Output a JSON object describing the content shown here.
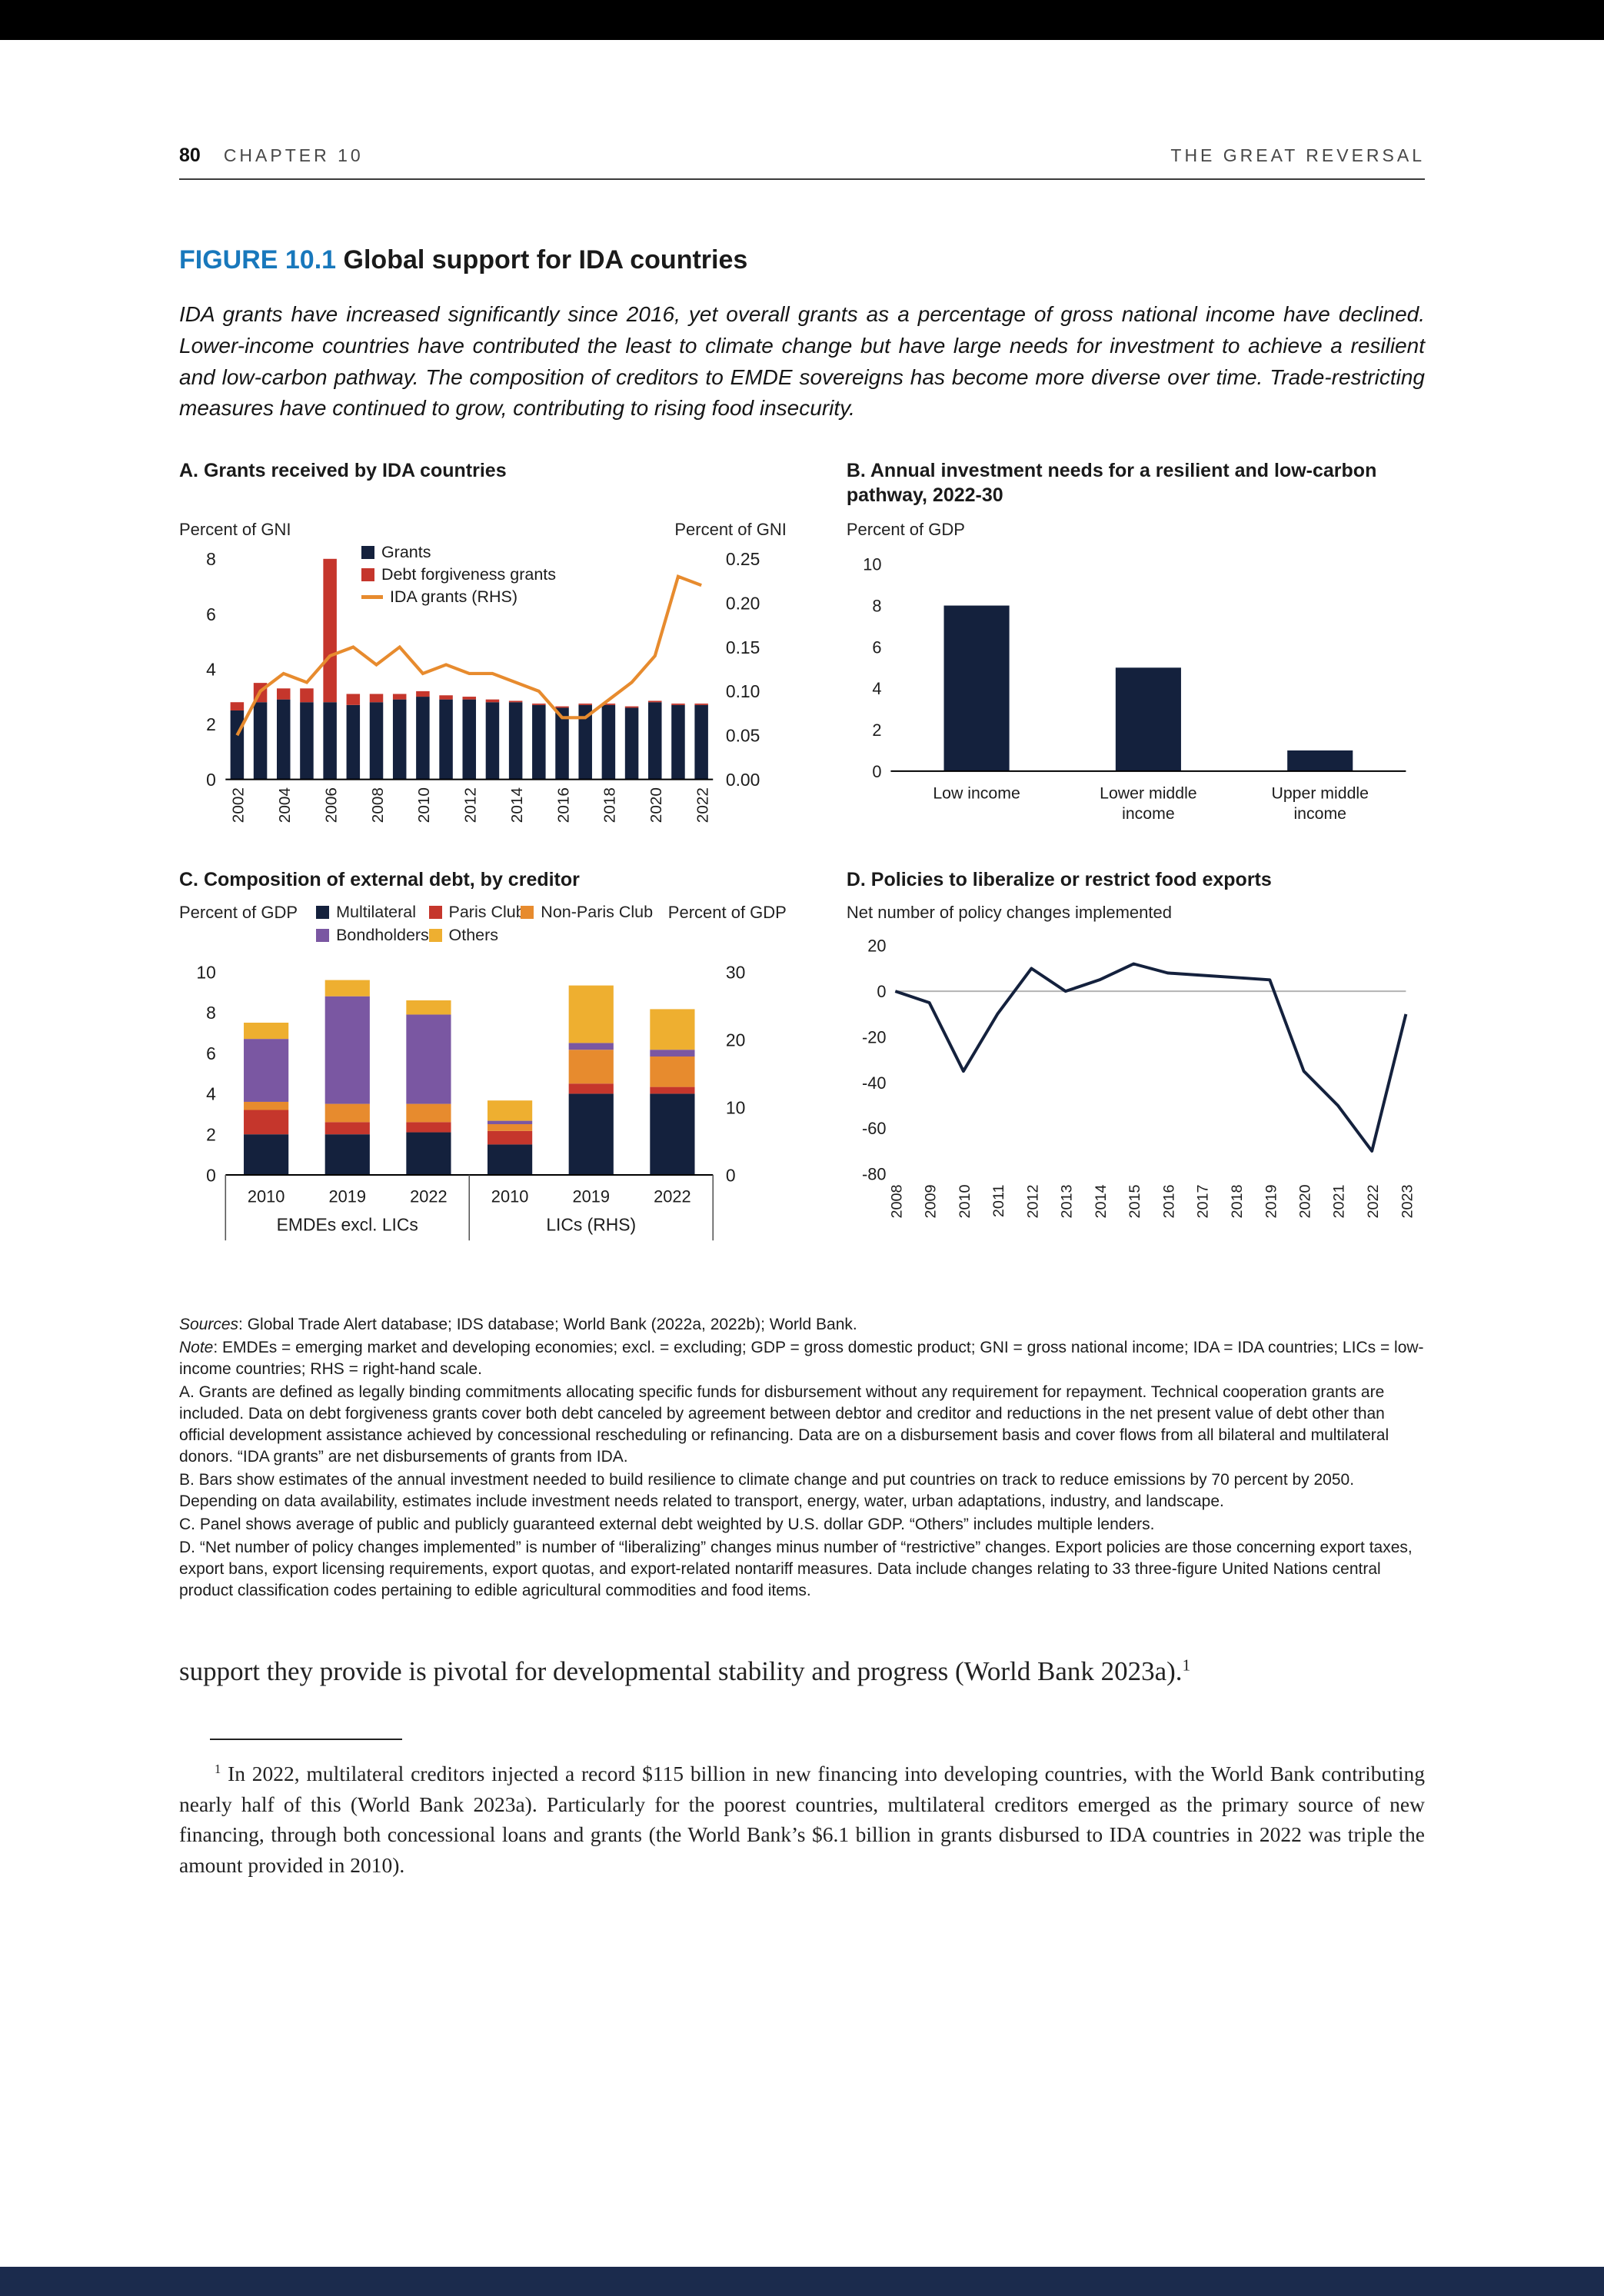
{
  "header": {
    "page_number": "80",
    "chapter": "CHAPTER 10",
    "running_title": "THE GREAT REVERSAL"
  },
  "figure": {
    "label": "FIGURE 10.1",
    "title": "Global support for IDA countries",
    "intro": "IDA grants have increased significantly since 2016, yet overall grants as a percentage of gross national income have declined. Lower-income countries have contributed the least to climate change but have large needs for investment to achieve a resilient and low-carbon pathway. The composition of creditors to EMDE sovereigns has become more diverse over time. Trade-restricting measures have continued to grow, contributing to rising food insecurity."
  },
  "panels": {
    "a": {
      "heading": "A. Grants received by IDA countries",
      "left_axis_label": "Percent of GNI",
      "right_axis_label": "Percent of GNI"
    },
    "b": {
      "heading": "B. Annual investment needs for a resilient and low-carbon pathway, 2022-30",
      "axis_label": "Percent of GDP"
    },
    "c": {
      "heading": "C. Composition of external debt, by creditor",
      "left_axis_label": "Percent of GDP",
      "right_axis_label": "Percent of GDP"
    },
    "d": {
      "heading": "D. Policies to liberalize or restrict food exports",
      "subtitle": "Net number of policy changes implemented"
    }
  },
  "chart_data": [
    {
      "id": "a",
      "type": "bar",
      "title": "A. Grants received by IDA countries",
      "left_axis_label": "Percent of GNI",
      "right_axis_label": "Percent of GNI",
      "ylim_left": [
        0,
        8
      ],
      "ylim_right": [
        0,
        0.25
      ],
      "left_ticks": [
        0,
        2,
        4,
        6,
        8
      ],
      "right_ticks": [
        0,
        0.05,
        0.1,
        0.15,
        0.2,
        0.25
      ],
      "years": [
        2002,
        2003,
        2004,
        2005,
        2006,
        2007,
        2008,
        2009,
        2010,
        2011,
        2012,
        2013,
        2014,
        2015,
        2016,
        2017,
        2018,
        2019,
        2020,
        2021,
        2022
      ],
      "series": [
        {
          "name": "Grants",
          "type": "bar",
          "axis": "left",
          "color": "navy",
          "values": [
            2.5,
            2.8,
            2.9,
            2.8,
            2.8,
            2.7,
            2.8,
            2.9,
            3.0,
            2.9,
            2.9,
            2.8,
            2.8,
            2.7,
            2.6,
            2.7,
            2.7,
            2.6,
            2.8,
            2.7,
            2.7
          ]
        },
        {
          "name": "Debt forgiveness grants",
          "type": "bar",
          "axis": "left",
          "color": "red",
          "values": [
            0.3,
            0.7,
            0.4,
            0.5,
            5.2,
            0.4,
            0.3,
            0.2,
            0.2,
            0.15,
            0.1,
            0.1,
            0.05,
            0.05,
            0.05,
            0.05,
            0.05,
            0.05,
            0.05,
            0.05,
            0.05
          ]
        },
        {
          "name": "IDA grants (RHS)",
          "type": "line",
          "axis": "right",
          "color": "orange",
          "values": [
            0.05,
            0.1,
            0.12,
            0.11,
            0.14,
            0.15,
            0.13,
            0.15,
            0.12,
            0.13,
            0.12,
            0.12,
            0.11,
            0.1,
            0.07,
            0.07,
            0.09,
            0.11,
            0.14,
            0.23,
            0.22
          ]
        }
      ]
    },
    {
      "id": "b",
      "type": "bar",
      "title": "B. Annual investment needs for a resilient and low-carbon pathway, 2022-30",
      "ylabel": "Percent of GDP",
      "ylim": [
        0,
        10
      ],
      "yticks": [
        0,
        2,
        4,
        6,
        8,
        10
      ],
      "categories": [
        "Low income",
        "Lower middle\nincome",
        "Upper middle\nincome"
      ],
      "values": [
        8,
        5,
        1
      ],
      "bar_color": "navy"
    },
    {
      "id": "c",
      "type": "bar",
      "title": "C. Composition of external debt, by creditor",
      "left_axis_label": "Percent of GDP",
      "right_axis_label": "Percent of GDP",
      "ylim_left": [
        0,
        10
      ],
      "ylim_right": [
        0,
        30
      ],
      "left_ticks": [
        0,
        2,
        4,
        6,
        8,
        10
      ],
      "right_ticks": [
        0,
        10,
        20,
        30
      ],
      "series": [
        {
          "name": "Multilateral",
          "color": "navy"
        },
        {
          "name": "Paris Club",
          "color": "red"
        },
        {
          "name": "Non-Paris Club",
          "color": "orange"
        },
        {
          "name": "Bondholders",
          "color": "purple"
        },
        {
          "name": "Others",
          "color": "yellow"
        }
      ],
      "group_labels": [
        "EMDEs excl. LICs",
        "LICs (RHS)"
      ],
      "scale_note": "LICs bars read on the right-hand scale (0-30)",
      "stacks": [
        {
          "group": "EMDEs excl. LICs",
          "year": "2010",
          "axis": "left",
          "values": [
            2.0,
            1.2,
            0.4,
            3.1,
            0.8
          ]
        },
        {
          "group": "EMDEs excl. LICs",
          "year": "2019",
          "axis": "left",
          "values": [
            2.0,
            0.6,
            0.9,
            5.3,
            0.8
          ]
        },
        {
          "group": "EMDEs excl. LICs",
          "year": "2022",
          "axis": "left",
          "values": [
            2.1,
            0.5,
            0.9,
            4.4,
            0.7
          ]
        },
        {
          "group": "LICs (RHS)",
          "year": "2010",
          "axis": "right",
          "values": [
            4.5,
            2.0,
            1.0,
            0.5,
            3.0
          ]
        },
        {
          "group": "LICs (RHS)",
          "year": "2019",
          "axis": "right",
          "values": [
            12.0,
            1.5,
            5.0,
            1.0,
            8.5
          ]
        },
        {
          "group": "LICs (RHS)",
          "year": "2022",
          "axis": "right",
          "values": [
            12.0,
            1.0,
            4.5,
            1.0,
            6.0
          ]
        }
      ]
    },
    {
      "id": "d",
      "type": "line",
      "title": "D. Policies to liberalize or restrict food exports",
      "ylabel": "Net number of policy changes implemented",
      "ylim": [
        -80,
        20
      ],
      "yticks": [
        20,
        0,
        -20,
        -40,
        -60,
        -80
      ],
      "years": [
        2008,
        2009,
        2010,
        2011,
        2012,
        2013,
        2014,
        2015,
        2016,
        2017,
        2018,
        2019,
        2020,
        2021,
        2022,
        2023
      ],
      "values": [
        0,
        -5,
        -35,
        -10,
        10,
        0,
        5,
        12,
        8,
        7,
        6,
        5,
        -35,
        -50,
        -70,
        -10
      ],
      "line_color": "navy"
    }
  ],
  "notes": {
    "sources_label": "Sources",
    "sources_text": ": Global Trade Alert database; IDS database; World Bank (2022a, 2022b); World Bank.",
    "note_label": "Note",
    "note_text": ": EMDEs = emerging market and developing economies; excl. = excluding; GDP = gross domestic product; GNI = gross national income; IDA = IDA countries; LICs = low-income countries; RHS = right-hand scale.",
    "panel_notes": [
      "A. Grants are defined as legally binding commitments allocating specific funds for disbursement without any requirement for repayment. Technical cooperation grants are included. Data on debt forgiveness grants cover both debt canceled by agreement between debtor and creditor and reductions in the net present value of debt other than official development assistance achieved by concessional rescheduling or refinancing. Data are on a disbursement basis and cover flows from all bilateral and multilateral donors. “IDA grants” are net disbursements of grants from IDA.",
      "B. Bars show estimates of the annual investment needed to build resilience to climate change and put countries on track to reduce emissions by 70 percent by 2050. Depending on data availability, estimates include investment needs related to transport, energy, water, urban adaptations, industry, and landscape.",
      "C. Panel shows average of public and publicly guaranteed external debt weighted by U.S. dollar GDP. “Others” includes multiple lenders.",
      "D. “Net number of policy changes implemented” is number of “liberalizing” changes minus number of “restrictive” changes. Export policies are those concerning export taxes, export bans, export licensing requirements, export quotas, and export-related nontariff measures. Data include changes relating to 33 three-figure United Nations central product classification codes pertaining to edible agricultural commodities and food items."
    ]
  },
  "body_text": {
    "main": "support they provide is pivotal for developmental stability and progress (World Bank 2023a).",
    "footnote_ref": "1"
  },
  "footnote": {
    "marker": "1",
    "text": "In 2022, multilateral creditors injected a record $115 billion in new financing into developing countries, with the World Bank contributing nearly half of this (World Bank 2023a). Particularly for the poorest countries, multilateral creditors emerged as the primary source of new financing, through both concessional loans and grants (the World Bank’s $6.1 billion in grants disbursed to IDA countries in 2022 was triple the amount provided in 2010)."
  },
  "colors": {
    "navy": "#14213d",
    "red": "#c5362c",
    "orange": "#e78b2e",
    "purple": "#7a57a2",
    "yellow": "#eeaf30",
    "figure_blue": "#1878bc",
    "footer_navy": "#1b2b4d",
    "zero_line_gray": "#b3b3b3"
  }
}
